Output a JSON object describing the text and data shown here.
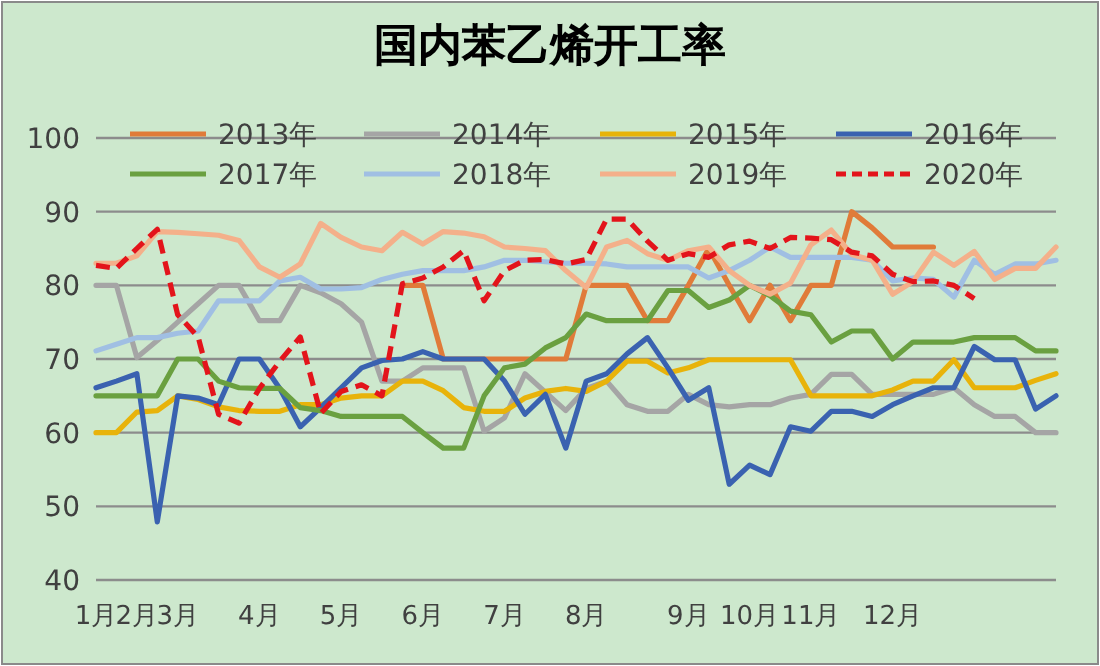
{
  "chart_data": {
    "type": "line",
    "title": "国内苯乙烯开工率",
    "categories": [
      "1月",
      null,
      "2月",
      null,
      "3月",
      null,
      null,
      null,
      "4月",
      null,
      null,
      null,
      "5月",
      null,
      null,
      null,
      "6月",
      null,
      null,
      null,
      "7月",
      null,
      null,
      null,
      "8月",
      null,
      null,
      null,
      null,
      "9月",
      null,
      null,
      "10月",
      null,
      null,
      "11月",
      null,
      null,
      null,
      "12月",
      null,
      null,
      null,
      null,
      null,
      null,
      null,
      null
    ],
    "ylim": [
      40,
      100
    ],
    "yticks": [
      40,
      50,
      60,
      70,
      80,
      90,
      100
    ],
    "grid": "y",
    "legend": "top",
    "marker": "none",
    "series": [
      {
        "name": "2013年",
        "color": "#e07b39",
        "line_style": "solid",
        "values": [
          null,
          null,
          null,
          null,
          null,
          null,
          null,
          null,
          null,
          null,
          null,
          null,
          null,
          null,
          null,
          80,
          80,
          70,
          70,
          70,
          70,
          70,
          70,
          70,
          80,
          80,
          80,
          75.2,
          75.2,
          80,
          85,
          80,
          75.2,
          80,
          75.2,
          80,
          80,
          90,
          87.8,
          85.2,
          85.2,
          85.2,
          null,
          null,
          null,
          null,
          null,
          null
        ]
      },
      {
        "name": "2014年",
        "color": "#a5a5a5",
        "line_style": "solid",
        "values": [
          80,
          80,
          70.2,
          72.5,
          75,
          77.5,
          80,
          80,
          75.2,
          75.2,
          80,
          79,
          77.5,
          75,
          67,
          67,
          68.8,
          68.8,
          68.8,
          60.2,
          62,
          68,
          65.5,
          63,
          66,
          67,
          63.8,
          62.9,
          62.9,
          65.2,
          63.8,
          63.5,
          63.8,
          63.8,
          64.7,
          65.2,
          67.9,
          67.9,
          65.2,
          65.2,
          65.2,
          65.2,
          66.1,
          63.8,
          62.2,
          62.2,
          60,
          60
        ]
      },
      {
        "name": "2015年",
        "color": "#e8b30a",
        "line_style": "solid",
        "values": [
          60,
          60,
          62.8,
          63,
          65,
          64.5,
          63.5,
          63,
          62.9,
          62.9,
          63.8,
          63.8,
          64.7,
          65,
          65,
          67,
          67,
          65.7,
          63.4,
          62.9,
          62.9,
          64.7,
          65.6,
          66,
          65.6,
          67,
          69.7,
          69.7,
          68.1,
          68.8,
          69.9,
          69.9,
          69.9,
          69.9,
          69.9,
          65,
          65,
          65,
          65,
          65.8,
          67,
          67,
          69.9,
          66.1,
          66.1,
          66.1,
          67.1,
          68
        ]
      },
      {
        "name": "2016年",
        "color": "#3a62b0",
        "line_style": "solid",
        "values": [
          66.1,
          67,
          68,
          47.9,
          65,
          64.7,
          63.8,
          70,
          70,
          66,
          60.8,
          63.4,
          66.1,
          68.8,
          69.8,
          70,
          71,
          70,
          70,
          70,
          67,
          62.5,
          65.2,
          57.9,
          67,
          68,
          70.7,
          72.9,
          68.8,
          64.4,
          66.1,
          53,
          55.6,
          54.3,
          60.8,
          60.2,
          62.9,
          62.9,
          62.2,
          63.8,
          65,
          66.1,
          66.1,
          71.7,
          69.9,
          69.9,
          63.2,
          65
        ]
      },
      {
        "name": "2017年",
        "color": "#6aa040",
        "line_style": "solid",
        "values": [
          65,
          65,
          65,
          65,
          70,
          70,
          67,
          66.1,
          66,
          66,
          63.4,
          63,
          62.2,
          62.2,
          62.2,
          62.2,
          60,
          57.9,
          57.9,
          65,
          68.8,
          69.3,
          71.5,
          72.9,
          76.1,
          75.2,
          75.2,
          75.2,
          79.3,
          79.3,
          77,
          78,
          80,
          78.6,
          76.5,
          76,
          72.3,
          73.8,
          73.8,
          70,
          72.3,
          72.3,
          72.3,
          72.9,
          72.9,
          72.9,
          71.1,
          71.1
        ]
      },
      {
        "name": "2018年",
        "color": "#a0bfe3",
        "line_style": "solid",
        "values": [
          71.1,
          72,
          72.9,
          72.9,
          73.5,
          73.8,
          77.9,
          77.9,
          77.9,
          80.6,
          81.1,
          79.5,
          79.5,
          79.7,
          80.8,
          81.5,
          82,
          82,
          82,
          82.5,
          83.4,
          83.4,
          83.2,
          83,
          83,
          82.9,
          82.5,
          82.5,
          82.5,
          82.5,
          81,
          82,
          83.4,
          85.2,
          83.8,
          83.8,
          83.8,
          83.8,
          83.4,
          80.6,
          81,
          80.8,
          78.4,
          83.4,
          81.5,
          82.9,
          82.9,
          83.4
        ]
      },
      {
        "name": "2019年",
        "color": "#f4b08a",
        "line_style": "solid",
        "values": [
          83,
          83,
          84,
          87.3,
          87.2,
          87,
          86.8,
          86.1,
          82.5,
          81.1,
          82.9,
          88.4,
          86.5,
          85.2,
          84.7,
          87.2,
          85.6,
          87.3,
          87.1,
          86.6,
          85.2,
          85,
          84.7,
          82,
          79.7,
          85.2,
          86.1,
          84.3,
          83.4,
          84.7,
          85.2,
          82,
          80,
          78.8,
          80.3,
          85.5,
          87.5,
          84.2,
          83.4,
          78.8,
          80.5,
          84.5,
          82.7,
          84.6,
          80.8,
          82.3,
          82.3,
          85.2
        ]
      },
      {
        "name": "2020年",
        "color": "#e3141b",
        "line_style": "dashed",
        "values": [
          82.7,
          82.3,
          85,
          87.6,
          76,
          73,
          62.5,
          61.3,
          66,
          69.7,
          73,
          62.6,
          65.6,
          66.5,
          65,
          80.2,
          81,
          82.5,
          84.7,
          77.9,
          82,
          83.4,
          83.5,
          82.9,
          83.5,
          89,
          89,
          86,
          83.4,
          84.3,
          83.8,
          85.5,
          86,
          85,
          86.5,
          86.4,
          86.2,
          84.5,
          84,
          81.5,
          80.5,
          80.6,
          80,
          78.2,
          null,
          null,
          null,
          null
        ]
      }
    ]
  }
}
